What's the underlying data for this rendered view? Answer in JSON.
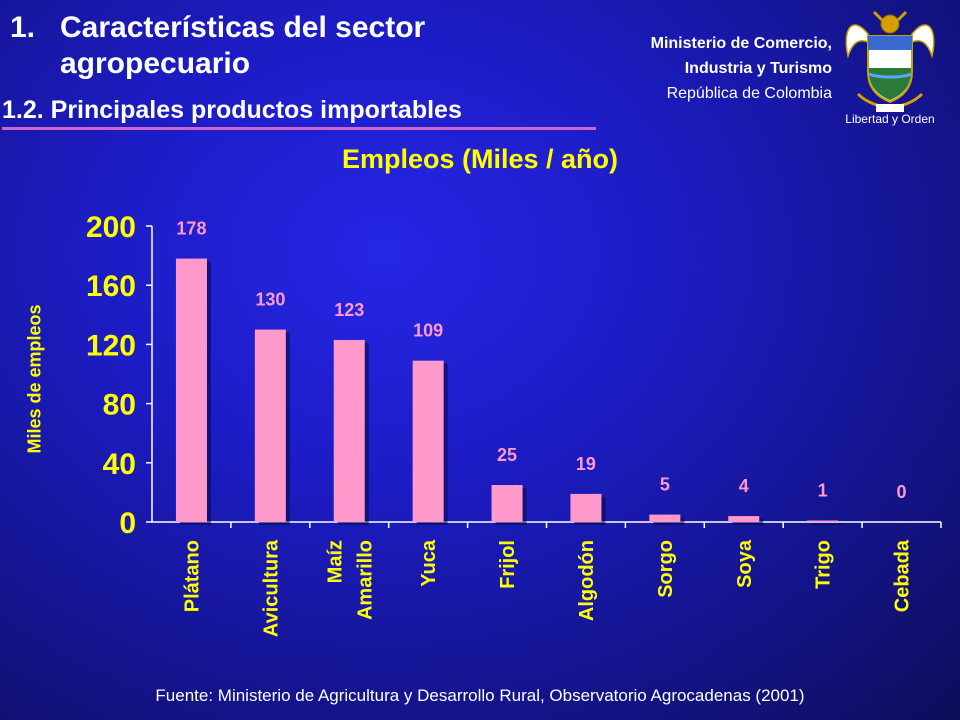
{
  "header": {
    "title_number": "1.",
    "title_line1": "Características del sector",
    "title_line2": "agropecuario",
    "subtitle": "1.2. Principales productos importables"
  },
  "ministry": {
    "line1": "Ministerio de Comercio,",
    "line2": "Industria y Turismo",
    "line3": "República de Colombia"
  },
  "seal": {
    "motto": "Libertad y Orden"
  },
  "source": "Fuente: Ministerio de Agricultura y Desarrollo Rural, Observatorio Agrocadenas  (2001)",
  "colors": {
    "bar": "#ff99cc",
    "label": "#ffff00",
    "value_label": "#ff99cc",
    "axis": "#ffffff"
  },
  "chart_data": {
    "type": "bar",
    "title": "Empleos (Miles / año)",
    "ylabel": "Miles de empleos",
    "xlabel": "",
    "categories": [
      [
        "Plátano"
      ],
      [
        "Avicultura"
      ],
      [
        "Maíz",
        "Amarillo"
      ],
      [
        "Yuca"
      ],
      [
        "Frijol"
      ],
      [
        "Algodón"
      ],
      [
        "Sorgo"
      ],
      [
        "Soya"
      ],
      [
        "Trigo"
      ],
      [
        "Cebada"
      ]
    ],
    "values": [
      178,
      130,
      123,
      109,
      25,
      19,
      5,
      4,
      1,
      0
    ],
    "ylim": [
      0,
      200
    ],
    "yticks": [
      0,
      40,
      80,
      120,
      160,
      200
    ],
    "grid": false,
    "legend": "none"
  }
}
